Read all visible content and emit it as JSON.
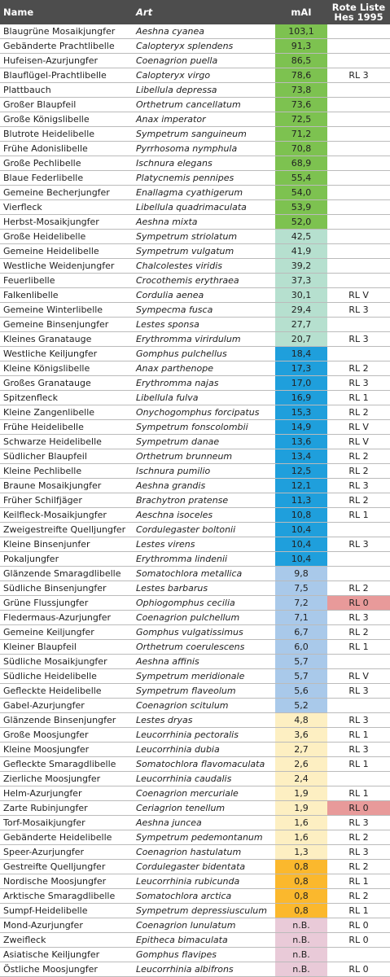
{
  "table": {
    "header": [
      "Name",
      "Art",
      "mAI",
      "Rote Liste Hes 1995"
    ],
    "rows": [
      {
        "name": "Blaugrüne Mosaikjungfer",
        "art": "Aeshna cyanea",
        "mai": "103,1",
        "rl": "",
        "color": "#7dc250"
      },
      {
        "name": "Gebänderte Prachtlibelle",
        "art": "Calopteryx splendens",
        "mai": "91,3",
        "rl": "",
        "color": "#7dc250"
      },
      {
        "name": "Hufeisen-Azurjungfer",
        "art": "Coenagrion puella",
        "mai": "86,5",
        "rl": "",
        "color": "#7dc250"
      },
      {
        "name": "Blauflügel-Prachtlibelle",
        "art": "Calopteryx virgo",
        "mai": "78,6",
        "rl": "RL 3",
        "color": "#7dc250"
      },
      {
        "name": "Plattbauch",
        "art": "Libellula depressa",
        "mai": "73,8",
        "rl": "",
        "color": "#7dc250"
      },
      {
        "name": "Großer Blaupfeil",
        "art": "Orthetrum cancellatum",
        "mai": "73,6",
        "rl": "",
        "color": "#7dc250"
      },
      {
        "name": "Große Königslibelle",
        "art": "Anax imperator",
        "mai": "72,5",
        "rl": "",
        "color": "#7dc250"
      },
      {
        "name": "Blutrote Heidelibelle",
        "art": "Sympetrum sanguineum",
        "mai": "71,2",
        "rl": "",
        "color": "#7dc250"
      },
      {
        "name": "Frühe Adonislibelle",
        "art": "Pyrrhosoma nymphula",
        "mai": "70,8",
        "rl": "",
        "color": "#7dc250"
      },
      {
        "name": "Große Pechlibelle",
        "art": "Ischnura elegans",
        "mai": "68,9",
        "rl": "",
        "color": "#7dc250"
      },
      {
        "name": "Blaue Federlibelle",
        "art": "Platycnemis pennipes",
        "mai": "55,4",
        "rl": "",
        "color": "#7dc250"
      },
      {
        "name": "Gemeine Becherjungfer",
        "art": "Enallagma cyathigerum",
        "mai": "54,0",
        "rl": "",
        "color": "#7dc250"
      },
      {
        "name": "Vierfleck",
        "art": "Libellula quadrimaculata",
        "mai": "53,9",
        "rl": "",
        "color": "#7dc250"
      },
      {
        "name": "Herbst-Mosaikjungfer",
        "art": "Aeshna mixta",
        "mai": "52,0",
        "rl": "",
        "color": "#7dc250"
      },
      {
        "name": "Große Heidelibelle",
        "art": "Sympetrum striolatum",
        "mai": "42,5",
        "rl": "",
        "color": "#b6e0cf"
      },
      {
        "name": "Gemeine Heidelibelle",
        "art": "Sympetrum vulgatum",
        "mai": "41,9",
        "rl": "",
        "color": "#b6e0cf"
      },
      {
        "name": "Westliche Weidenjungfer",
        "art": "Chalcolestes viridis",
        "mai": "39,2",
        "rl": "",
        "color": "#b6e0cf"
      },
      {
        "name": "Feuerlibelle",
        "art": "Crocothemis erythraea",
        "mai": "37,3",
        "rl": "",
        "color": "#b6e0cf"
      },
      {
        "name": "Falkenlibelle",
        "art": "Cordulia aenea",
        "mai": "30,1",
        "rl": "RL V",
        "color": "#b6e0cf"
      },
      {
        "name": "Gemeine Winterlibelle",
        "art": "Sympecma fusca",
        "mai": "29,4",
        "rl": "RL 3",
        "color": "#b6e0cf"
      },
      {
        "name": "Gemeine Binsenjungfer",
        "art": "Lestes sponsa",
        "mai": "27,7",
        "rl": "",
        "color": "#b6e0cf"
      },
      {
        "name": "Kleines Granatauge",
        "art": "Erythromma virirdulum",
        "mai": "20,7",
        "rl": "RL 3",
        "color": "#b6e0cf"
      },
      {
        "name": "Westliche Keiljungfer",
        "art": "Gomphus pulchellus",
        "mai": "18,4",
        "rl": "",
        "color": "#1f9fdc"
      },
      {
        "name": "Kleine Königslibelle",
        "art": "Anax parthenope",
        "mai": "17,3",
        "rl": "RL 2",
        "color": "#1f9fdc"
      },
      {
        "name": "Großes Granatauge",
        "art": "Erythromma najas",
        "mai": "17,0",
        "rl": "RL 3",
        "color": "#1f9fdc"
      },
      {
        "name": "Spitzenfleck",
        "art": "Libellula fulva",
        "mai": "16,9",
        "rl": "RL 1",
        "color": "#1f9fdc"
      },
      {
        "name": "Kleine Zangenlibelle",
        "art": "Onychogomphus forcipatus",
        "mai": "15,3",
        "rl": "RL 2",
        "color": "#1f9fdc"
      },
      {
        "name": "Frühe Heidelibelle",
        "art": "Sympetrum fonscolombii",
        "mai": "14,9",
        "rl": "RL V",
        "color": "#1f9fdc"
      },
      {
        "name": "Schwarze Heidelibelle",
        "art": "Sympetrum danae",
        "mai": "13,6",
        "rl": "RL V",
        "color": "#1f9fdc"
      },
      {
        "name": "Südlicher Blaupfeil",
        "art": "Orthetrum brunneum",
        "mai": "13,4",
        "rl": "RL 2",
        "color": "#1f9fdc"
      },
      {
        "name": "Kleine Pechlibelle",
        "art": "Ischnura pumilio",
        "mai": "12,5",
        "rl": "RL 2",
        "color": "#1f9fdc"
      },
      {
        "name": "Braune Mosaikjungfer",
        "art": "Aeshna grandis",
        "mai": "12,1",
        "rl": "RL 3",
        "color": "#1f9fdc"
      },
      {
        "name": "Früher Schilfjäger",
        "art": "Brachytron pratense",
        "mai": "11,3",
        "rl": "RL 2",
        "color": "#1f9fdc"
      },
      {
        "name": "Keilfleck-Mosaikjungfer",
        "art": "Aeschna isoceles",
        "mai": "10,8",
        "rl": "RL 1",
        "color": "#1f9fdc"
      },
      {
        "name": "Zweigestreifte Quelljungfer",
        "art": "Cordulegaster boltonii",
        "mai": "10,4",
        "rl": "",
        "color": "#1f9fdc"
      },
      {
        "name": "Kleine Binsenjunfer",
        "art": "Lestes virens",
        "mai": "10,4",
        "rl": "RL 3",
        "color": "#1f9fdc"
      },
      {
        "name": "Pokaljungfer",
        "art": "Erythromma lindenii",
        "mai": "10,4",
        "rl": "",
        "color": "#1f9fdc"
      },
      {
        "name": "Glänzende Smaragdlibelle",
        "art": "Somatochlora metallica",
        "mai": "9,8",
        "rl": "",
        "color": "#a9c9ea"
      },
      {
        "name": "Südliche Binsenjungfer",
        "art": "Lestes barbarus",
        "mai": "7,5",
        "rl": "RL 2",
        "color": "#a9c9ea"
      },
      {
        "name": "Grüne Flussjungfer",
        "art": "Ophiogomphus cecilia",
        "mai": "7,2",
        "rl": "RL 0",
        "color": "#a9c9ea",
        "rl_color": "#e89a9a"
      },
      {
        "name": "Fledermaus-Azurjungfer",
        "art": "Coenagrion pulchellum",
        "mai": "7,1",
        "rl": "RL 3",
        "color": "#a9c9ea"
      },
      {
        "name": "Gemeine Keiljungfer",
        "art": "Gomphus vulgatissimus",
        "mai": "6,7",
        "rl": "RL 2",
        "color": "#a9c9ea"
      },
      {
        "name": "Kleiner Blaupfeil",
        "art": "Orthetrum coerulescens",
        "mai": "6,0",
        "rl": "RL 1",
        "color": "#a9c9ea"
      },
      {
        "name": "Südliche Mosaikjungfer",
        "art": "Aeshna affinis",
        "mai": "5,7",
        "rl": "",
        "color": "#a9c9ea"
      },
      {
        "name": "Südliche Heidelibelle",
        "art": "Sympetrum meridionale",
        "mai": "5,7",
        "rl": "RL V",
        "color": "#a9c9ea"
      },
      {
        "name": "Gefleckte Heidelibelle",
        "art": "Sympetrum flaveolum",
        "mai": "5,6",
        "rl": "RL 3",
        "color": "#a9c9ea"
      },
      {
        "name": "Gabel-Azurjungfer",
        "art": "Coenagrion scitulum",
        "mai": "5,2",
        "rl": "",
        "color": "#a9c9ea"
      },
      {
        "name": "Glänzende Binsenjungfer",
        "art": "Lestes dryas",
        "mai": "4,8",
        "rl": "RL 3",
        "color": "#fdefc2"
      },
      {
        "name": "Große Moosjungfer",
        "art": "Leucorrhinia pectoralis",
        "mai": "3,6",
        "rl": "RL 1",
        "color": "#fdefc2"
      },
      {
        "name": "Kleine Moosjungfer",
        "art": "Leucorrhinia dubia",
        "mai": "2,7",
        "rl": "RL 3",
        "color": "#fdefc2"
      },
      {
        "name": "Gefleckte Smaragdlibelle",
        "art": "Somatochlora flavomaculata",
        "mai": "2,6",
        "rl": "RL 1",
        "color": "#fdefc2"
      },
      {
        "name": "Zierliche Moosjungfer",
        "art": "Leucorrhinia caudalis",
        "mai": "2,4",
        "rl": "",
        "color": "#fdefc2"
      },
      {
        "name": "Helm-Azurjungfer",
        "art": "Coenagrion mercuriale",
        "mai": "1,9",
        "rl": "RL 1",
        "color": "#fdefc2"
      },
      {
        "name": "Zarte Rubinjungfer",
        "art": "Ceriagrion tenellum",
        "mai": "1,9",
        "rl": "RL 0",
        "color": "#fdefc2",
        "rl_color": "#e89a9a"
      },
      {
        "name": "Torf-Mosaikjungfer",
        "art": "Aeshna juncea",
        "mai": "1,6",
        "rl": "RL 3",
        "color": "#fdefc2"
      },
      {
        "name": "Gebänderte Heidelibelle",
        "art": "Sympetrum pedemontanum",
        "mai": "1,6",
        "rl": "RL 2",
        "color": "#fdefc2"
      },
      {
        "name": "Speer-Azurjungfer",
        "art": "Coenagrion hastulatum",
        "mai": "1,3",
        "rl": "RL 3",
        "color": "#fdefc2"
      },
      {
        "name": "Gestreifte Quelljungfer",
        "art": "Cordulegaster bidentata",
        "mai": "0,8",
        "rl": "RL 2",
        "color": "#fbb82d"
      },
      {
        "name": "Nordische Moosjungfer",
        "art": "Leucorrhinia rubicunda",
        "mai": "0,8",
        "rl": "RL 1",
        "color": "#fbb82d"
      },
      {
        "name": "Arktische Smaragdlibelle",
        "art": "Somatochlora arctica",
        "mai": "0,8",
        "rl": "RL 2",
        "color": "#fbb82d"
      },
      {
        "name": "Sumpf-Heidelibelle",
        "art": "Sympetrum depressiusculum",
        "mai": "0,8",
        "rl": "RL 1",
        "color": "#fbb82d"
      },
      {
        "name": "Mond-Azurjungfer",
        "art": "Coenagrion lunulatum",
        "mai": "n.B.",
        "rl": "RL 0",
        "color": "#e9cad8"
      },
      {
        "name": "Zweifleck",
        "art": "Epitheca bimaculata",
        "mai": "n.B.",
        "rl": "RL 0",
        "color": "#e9cad8"
      },
      {
        "name": "Asiatische Keiljungfer",
        "art": "Gomphus flavipes",
        "mai": "n.B.",
        "rl": "",
        "color": "#e9cad8"
      },
      {
        "name": "Östliche Moosjungfer",
        "art": "Leucorrhinia albifrons",
        "mai": "n.B.",
        "rl": "RL 0",
        "color": "#e9cad8"
      }
    ]
  }
}
